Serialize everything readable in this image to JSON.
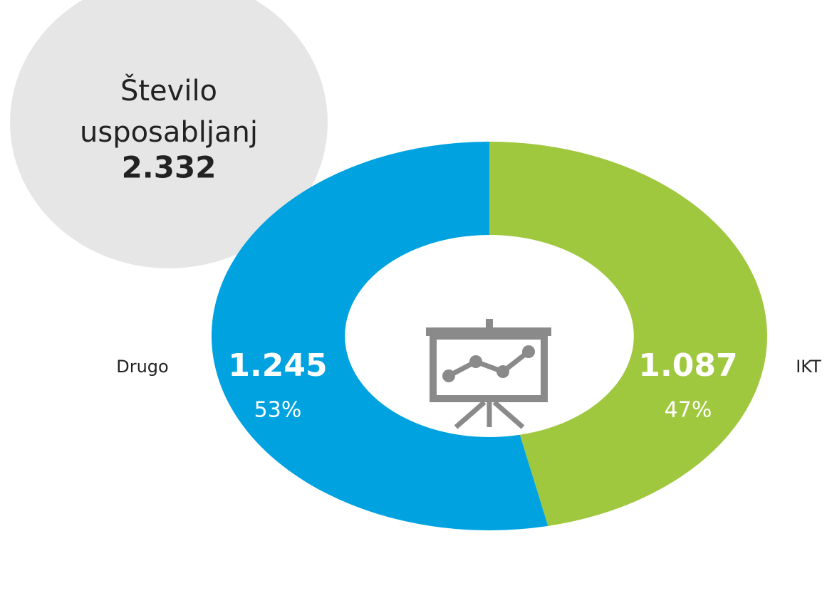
{
  "chart_data": {
    "type": "donut",
    "title": "Število usposabljanj",
    "total": {
      "value": 2332,
      "label": "2.332"
    },
    "categories": [
      "IKT",
      "Drugo"
    ],
    "values": [
      1087,
      1245
    ],
    "value_labels": [
      "1.087",
      "1.245"
    ],
    "percentage_labels": [
      "47%",
      "53%"
    ],
    "colors": [
      "#a0c83f",
      "#00a3e0"
    ]
  }
}
